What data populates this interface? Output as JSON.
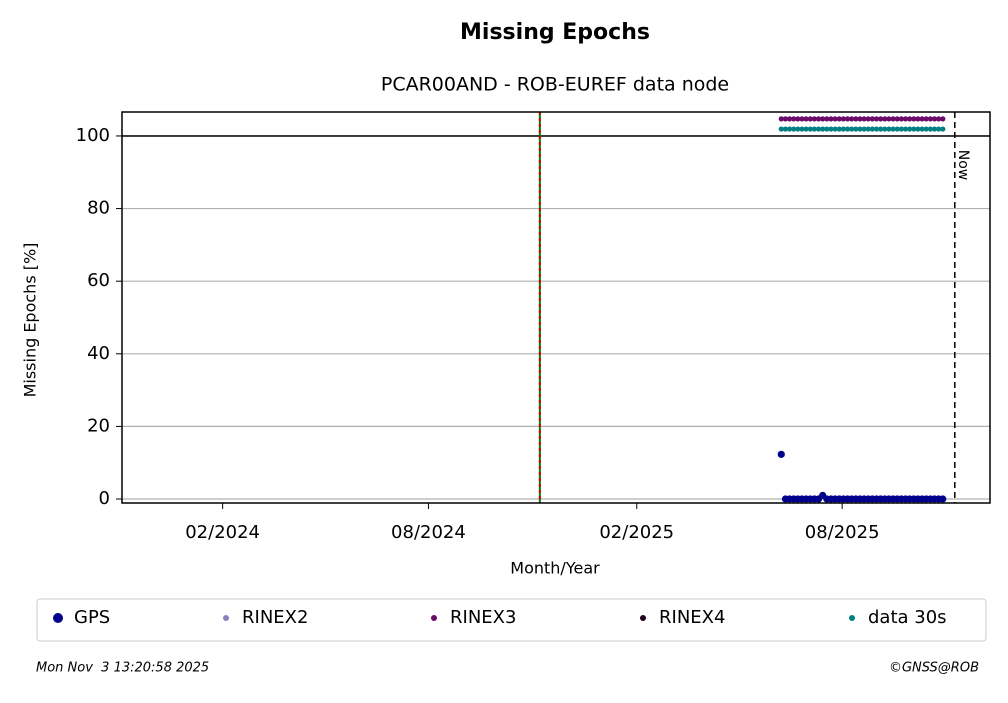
{
  "chart_data": {
    "type": "scatter",
    "title": "Missing Epochs",
    "subtitle": "PCAR00AND - ROB-EUREF data node",
    "x_label": "Month/Year",
    "y_label": "Missing Epochs [%]",
    "now_label": "Now",
    "timestamp": "Mon Nov  3 13:20:58 2025",
    "credit": "©GNSS@ROB",
    "xlim": [
      2023.842,
      2025.938
    ],
    "ylim": [
      -1.1,
      106.6
    ],
    "xticks": [
      {
        "value": 2024.085,
        "label": "02/2024"
      },
      {
        "value": 2024.582,
        "label": "08/2024"
      },
      {
        "value": 2025.085,
        "label": "02/2025"
      },
      {
        "value": 2025.581,
        "label": "08/2025"
      }
    ],
    "yticks": [
      0,
      20,
      40,
      60,
      80,
      100
    ],
    "grid": true,
    "hline": 100,
    "vline": 2024.851,
    "now": 2025.853,
    "x": [
      2025.434,
      2025.444,
      2025.454,
      2025.464,
      2025.474,
      2025.484,
      2025.494,
      2025.504,
      2025.514,
      2025.524,
      2025.534,
      2025.544,
      2025.554,
      2025.564,
      2025.574,
      2025.584,
      2025.594,
      2025.604,
      2025.614,
      2025.624,
      2025.634,
      2025.644,
      2025.654,
      2025.664,
      2025.674,
      2025.684,
      2025.694,
      2025.704,
      2025.714,
      2025.724,
      2025.734,
      2025.744,
      2025.754,
      2025.764,
      2025.774,
      2025.784,
      2025.794,
      2025.804,
      2025.814,
      2025.824
    ],
    "series": [
      {
        "name": "GPS",
        "color": "#00008b",
        "values": [
          12.3,
          0,
          0,
          0,
          0,
          0,
          0,
          0,
          0,
          0,
          1,
          0,
          0,
          0,
          0,
          0,
          0,
          0,
          0,
          0,
          0,
          0,
          0,
          0,
          0,
          0,
          0,
          0,
          0,
          0,
          0,
          0,
          0,
          0,
          0,
          0,
          0,
          0,
          0,
          0
        ]
      },
      {
        "name": "RINEX2",
        "color": "#8a7fbf",
        "values": [
          null,
          null,
          null,
          null,
          null,
          null,
          null,
          null,
          null,
          null,
          null,
          null,
          null,
          null,
          null,
          null,
          null,
          null,
          null,
          null,
          null,
          null,
          null,
          null,
          null,
          null,
          null,
          null,
          null,
          null,
          null,
          null,
          null,
          null,
          null,
          null,
          null,
          null,
          null,
          null
        ]
      },
      {
        "name": "RINEX3",
        "color": "#6a0a6a",
        "values": [
          104.7,
          104.7,
          104.7,
          104.7,
          104.7,
          104.7,
          104.7,
          104.7,
          104.7,
          104.7,
          104.7,
          104.7,
          104.7,
          104.7,
          104.7,
          104.7,
          104.7,
          104.7,
          104.7,
          104.7,
          104.7,
          104.7,
          104.7,
          104.7,
          104.7,
          104.7,
          104.7,
          104.7,
          104.7,
          104.7,
          104.7,
          104.7,
          104.7,
          104.7,
          104.7,
          104.7,
          104.7,
          104.7,
          104.7,
          104.7
        ]
      },
      {
        "name": "RINEX4",
        "color": "#200020",
        "values": [
          null,
          null,
          null,
          null,
          null,
          null,
          null,
          null,
          null,
          null,
          null,
          null,
          null,
          null,
          null,
          null,
          null,
          null,
          null,
          null,
          null,
          null,
          null,
          null,
          null,
          null,
          null,
          null,
          null,
          null,
          null,
          null,
          null,
          null,
          null,
          null,
          null,
          null,
          null,
          null
        ]
      },
      {
        "name": "data 30s",
        "color": "#008080",
        "values": [
          101.9,
          101.9,
          101.9,
          101.9,
          101.9,
          101.9,
          101.9,
          101.9,
          101.9,
          101.9,
          101.9,
          101.9,
          101.9,
          101.9,
          101.9,
          101.9,
          101.9,
          101.9,
          101.9,
          101.9,
          101.9,
          101.9,
          101.9,
          101.9,
          101.9,
          101.9,
          101.9,
          101.9,
          101.9,
          101.9,
          101.9,
          101.9,
          101.9,
          101.9,
          101.9,
          101.9,
          101.9,
          101.9,
          101.9,
          101.9
        ]
      }
    ]
  }
}
